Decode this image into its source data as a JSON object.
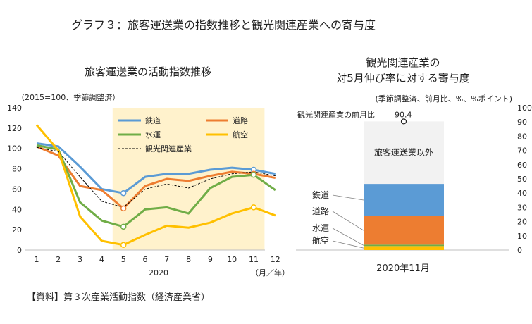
{
  "figure": {
    "title": "グラフ３：旅客運送業の指数推移と観光関連産業への寄与度",
    "source": "【資料】第３次産業活動指数（経済産業省）"
  },
  "chart_data": [
    {
      "type": "line",
      "title": "旅客運送業の活動指数推移",
      "unit_note": "（2015=100、季節調整済）",
      "xlabel": "2020",
      "x_unit": "（月／年）",
      "categories": [
        "1",
        "2",
        "3",
        "4",
        "5",
        "6",
        "7",
        "8",
        "9",
        "10",
        "11",
        "12"
      ],
      "ylim": [
        0,
        140
      ],
      "yticks": [
        0,
        20,
        40,
        60,
        80,
        100,
        120,
        140
      ],
      "highlight_range": [
        "4.5",
        "11.5"
      ],
      "marker_months": [
        "5",
        "11"
      ],
      "series": [
        {
          "name": "鉄道",
          "color": "#5b9bd5",
          "style": "solid",
          "values": [
            105,
            102,
            82,
            60,
            56,
            72,
            75,
            75,
            79,
            81,
            79,
            75
          ]
        },
        {
          "name": "道路",
          "color": "#ed7d31",
          "style": "solid",
          "values": [
            102,
            93,
            63,
            59,
            41,
            63,
            70,
            68,
            73,
            77,
            75,
            71
          ]
        },
        {
          "name": "水運",
          "color": "#70ad47",
          "style": "solid",
          "values": [
            103,
            99,
            47,
            29,
            23,
            40,
            42,
            36,
            61,
            72,
            74,
            59
          ]
        },
        {
          "name": "航空",
          "color": "#ffc000",
          "style": "solid",
          "values": [
            123,
            98,
            33,
            9,
            5,
            15,
            24,
            22,
            27,
            36,
            42,
            34
          ]
        },
        {
          "name": "観光関連産業",
          "color": "#000000",
          "style": "dashed",
          "values": [
            101,
            97,
            72,
            48,
            42,
            60,
            65,
            61,
            70,
            75,
            77,
            73
          ]
        }
      ]
    },
    {
      "type": "bar",
      "stacked": true,
      "title_lines": [
        "観光関連産業の",
        "対5月伸び率に対する寄与度"
      ],
      "unit_note": "(季節調整済、前月比、%、%ポイント)",
      "categories": [
        "2020年11月"
      ],
      "ylim": [
        0,
        100
      ],
      "yticks": [
        0,
        10,
        20,
        30,
        40,
        50,
        60,
        70,
        80,
        90,
        100
      ],
      "total_label": "観光関連産業の前月比",
      "total_value": 90.4,
      "segments": [
        {
          "name": "航空",
          "value": 2.8,
          "color": "#ffc000"
        },
        {
          "name": "水運",
          "value": 1.0,
          "color": "#70ad47"
        },
        {
          "name": "道路",
          "value": 20.0,
          "color": "#ed7d31"
        },
        {
          "name": "鉄道",
          "value": 22.7,
          "color": "#5b9bd5"
        },
        {
          "name": "旅客運送業以外",
          "value": 43.9,
          "color": "#f2f2f2"
        }
      ]
    }
  ]
}
